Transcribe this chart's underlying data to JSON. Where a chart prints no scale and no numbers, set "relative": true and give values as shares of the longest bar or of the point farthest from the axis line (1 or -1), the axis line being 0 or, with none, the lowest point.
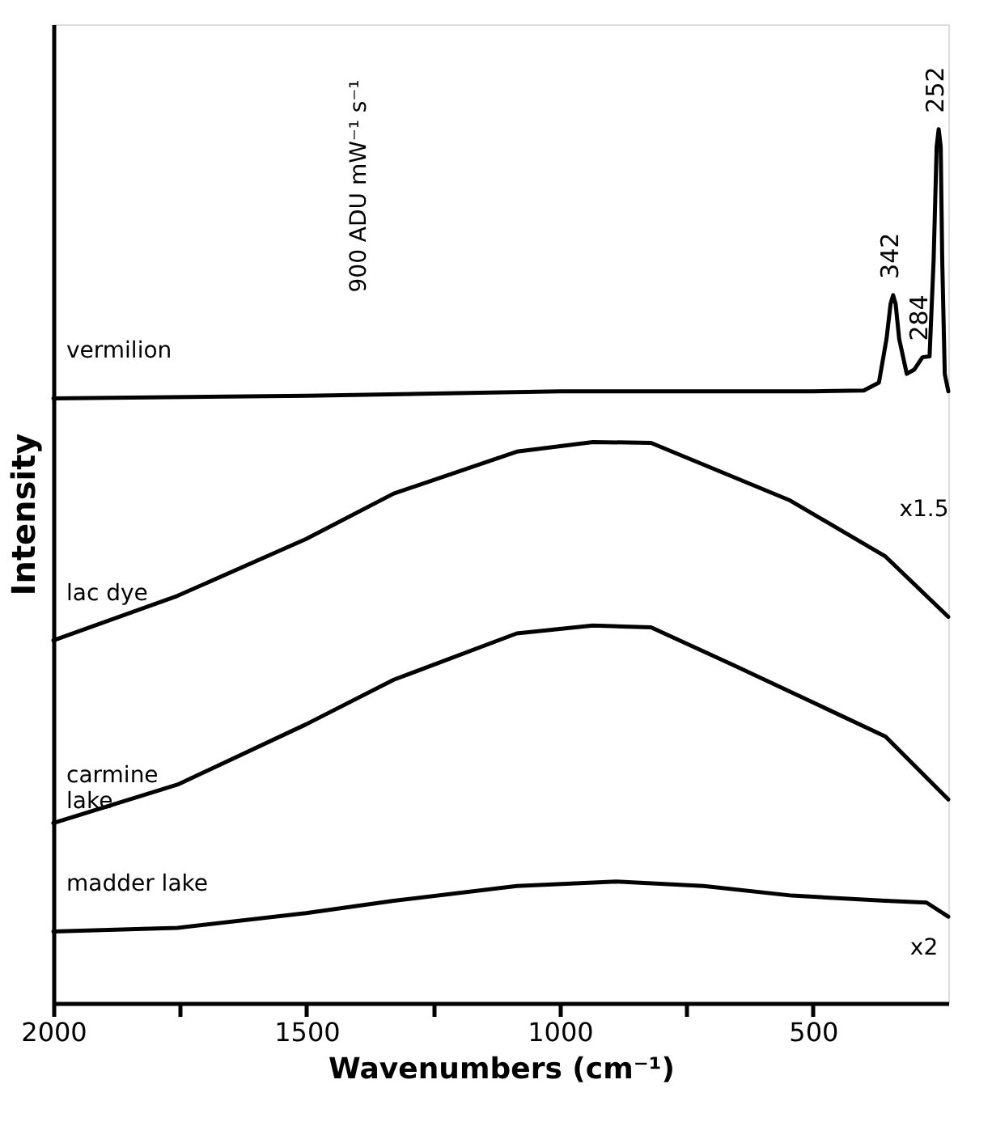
{
  "chart_data": {
    "type": "line",
    "relative": true,
    "xlabel": "Wavenumbers (cm⁻¹)",
    "ylabel": "Intensity",
    "xlim": [
      2000,
      233
    ],
    "xticks": [
      2000,
      {
        "value": 1750,
        "label": null
      },
      1500,
      {
        "value": 1250,
        "label": null
      },
      1000,
      {
        "value": 750,
        "label": null
      },
      500
    ],
    "grid": false,
    "legend": false,
    "marker": "none",
    "line_style": "solid",
    "series": [
      {
        "name": "vermilion",
        "color": "#000000",
        "x": [
          2000,
          1500,
          1000,
          500,
          400,
          370,
          355,
          347,
          342,
          337,
          330,
          315,
          300,
          284,
          270,
          262,
          256,
          252,
          248,
          245,
          240,
          233
        ],
        "values": [
          0.692,
          0.695,
          0.7,
          0.7,
          0.701,
          0.71,
          0.76,
          0.8,
          0.81,
          0.8,
          0.76,
          0.72,
          0.725,
          0.739,
          0.74,
          0.85,
          0.98,
          1.0,
          0.98,
          0.85,
          0.72,
          0.7
        ]
      },
      {
        "name": "lac dye",
        "color": "#000000",
        "x": [
          2000,
          1755,
          1501,
          1328,
          1085,
          935,
          820,
          545,
          357,
          233
        ],
        "values": [
          0.415,
          0.466,
          0.531,
          0.583,
          0.631,
          0.642,
          0.641,
          0.575,
          0.511,
          0.442
        ]
      },
      {
        "name": "carmine\nlake",
        "color": "#000000",
        "x": [
          2000,
          1755,
          1501,
          1328,
          1085,
          935,
          820,
          658,
          357,
          233
        ],
        "values": [
          0.206,
          0.25,
          0.319,
          0.37,
          0.423,
          0.432,
          0.43,
          0.387,
          0.305,
          0.233
        ]
      },
      {
        "name": "madder lake",
        "color": "#000000",
        "x": [
          2000,
          1755,
          1501,
          1328,
          1085,
          889,
          716,
          542,
          357,
          276,
          233
        ],
        "values": [
          0.082,
          0.086,
          0.103,
          0.117,
          0.134,
          0.139,
          0.134,
          0.123,
          0.117,
          0.115,
          0.099
        ]
      }
    ],
    "annotations": [
      {
        "text": "342",
        "x": 342,
        "y": 0.81
      },
      {
        "text": "284",
        "x": 284,
        "y": 0.739
      },
      {
        "text": "252",
        "x": 252,
        "y": 1.0
      },
      "900 ADU mW⁻¹ s⁻¹",
      "x1.5",
      "x2"
    ]
  }
}
